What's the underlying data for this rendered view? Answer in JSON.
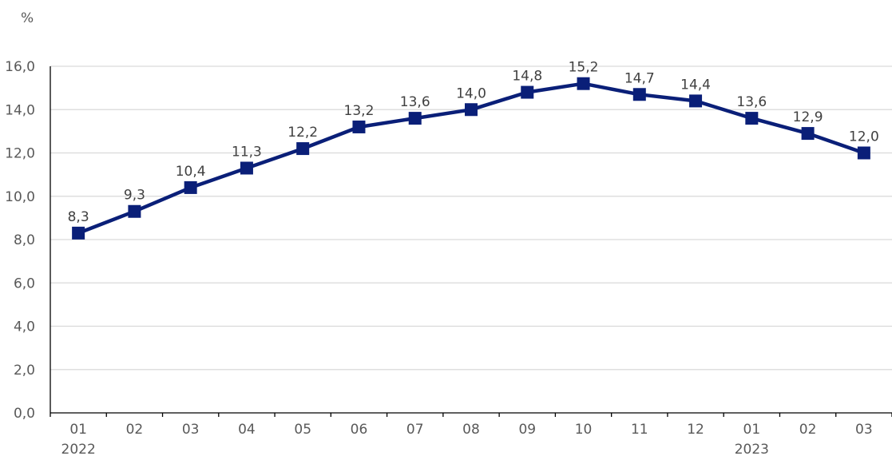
{
  "chart_data": {
    "type": "line",
    "title": "",
    "xlabel": "",
    "ylabel": "%",
    "categories": [
      "01",
      "02",
      "03",
      "04",
      "05",
      "06",
      "07",
      "08",
      "09",
      "10",
      "11",
      "12",
      "01",
      "02",
      "03"
    ],
    "year_labels": [
      {
        "index": 0,
        "label": "2022"
      },
      {
        "index": 12,
        "label": "2023"
      }
    ],
    "series": [
      {
        "values": [
          8.3,
          9.3,
          10.4,
          11.3,
          12.2,
          13.2,
          13.6,
          14.0,
          14.8,
          15.2,
          14.7,
          14.4,
          13.6,
          12.9,
          12.0
        ],
        "labels": [
          "8,3",
          "9,3",
          "10,4",
          "11,3",
          "12,2",
          "13,2",
          "13,6",
          "14,0",
          "14,8",
          "15,2",
          "14,7",
          "14,4",
          "13,6",
          "12,9",
          "12,0"
        ],
        "color": "#0a1f78",
        "marker": "square"
      }
    ],
    "ylim": [
      0,
      16
    ],
    "yticks": [
      0,
      2,
      4,
      6,
      8,
      10,
      12,
      14,
      16
    ],
    "ytick_labels": [
      "0,0",
      "2,0",
      "4,0",
      "6,0",
      "8,0",
      "10,0",
      "12,0",
      "14,0",
      "16,0"
    ],
    "grid": true,
    "legend": "none"
  }
}
